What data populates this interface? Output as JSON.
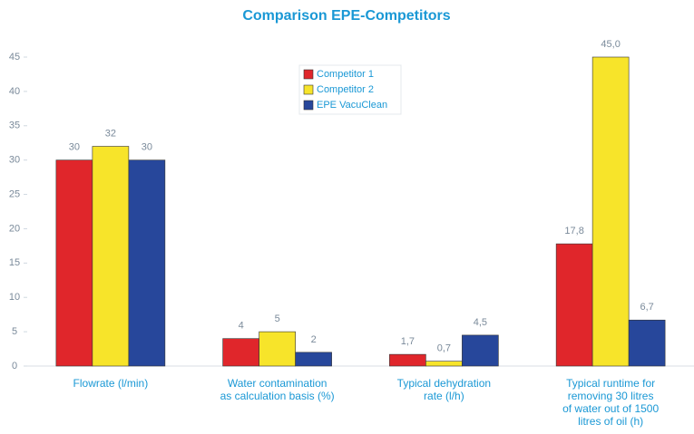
{
  "chart_data": {
    "type": "bar",
    "title": "Comparison EPE-Competitors",
    "categories": [
      [
        "Flowrate (l/min)"
      ],
      [
        "Water contamination",
        "as calculation basis (%)"
      ],
      [
        "Typical dehydration",
        "rate (l/h)"
      ],
      [
        "Typical runtime for",
        "removing 30 litres",
        "of water out of 1500",
        "litres of oil (h)"
      ]
    ],
    "series": [
      {
        "name": "Competitor 1",
        "color": "#e0262b",
        "values": [
          30,
          4,
          1.7,
          17.8
        ],
        "value_labels": [
          "30",
          "4",
          "1,7",
          "17,8"
        ]
      },
      {
        "name": "Competitor 2",
        "color": "#f7e42a",
        "values": [
          32,
          5,
          0.7,
          45.0
        ],
        "value_labels": [
          "32",
          "5",
          "0,7",
          "45,0"
        ]
      },
      {
        "name": "EPE VacuClean",
        "color": "#27479b",
        "values": [
          30,
          2,
          4.5,
          6.7
        ],
        "value_labels": [
          "30",
          "2",
          "4,5",
          "6,7"
        ]
      }
    ],
    "ylim": [
      0,
      45
    ],
    "yticks": [
      0,
      5,
      10,
      15,
      20,
      25,
      30,
      35,
      40,
      45
    ],
    "legend": "top-center"
  }
}
